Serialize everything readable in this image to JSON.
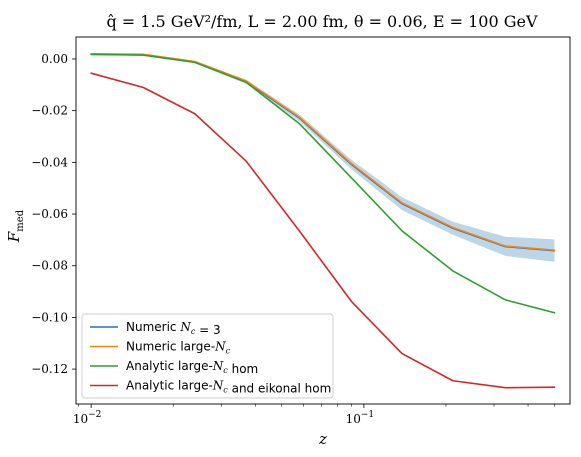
{
  "chart_data": {
    "type": "line",
    "title": "q̂ = 1.5 GeV²/fm,  L = 2.00 fm,  θ = 0.06,  E = 100 GeV",
    "xlabel": "z",
    "ylabel": "F_med",
    "xscale": "log",
    "xlim": [
      0.0088,
      0.57
    ],
    "ylim": [
      -0.1335,
      0.0085
    ],
    "x_ticks": [
      {
        "value": 0.01,
        "base": "10",
        "exp": "−2"
      },
      {
        "value": 0.1,
        "base": "10",
        "exp": "−1"
      }
    ],
    "y_ticks": [
      {
        "value": 0.0,
        "label": "0.00"
      },
      {
        "value": -0.02,
        "label": "−0.02"
      },
      {
        "value": -0.04,
        "label": "−0.04"
      },
      {
        "value": -0.06,
        "label": "−0.06"
      },
      {
        "value": -0.08,
        "label": "−0.08"
      },
      {
        "value": -0.1,
        "label": "−0.10"
      },
      {
        "value": -0.12,
        "label": "−0.12"
      }
    ],
    "x": [
      0.01,
      0.0155,
      0.024,
      0.037,
      0.058,
      0.09,
      0.138,
      0.212,
      0.33,
      0.5
    ],
    "series": [
      {
        "name": "Numeric N_c = 3",
        "color": "#1f77b4",
        "values": [
          0.0018,
          0.0016,
          -0.0012,
          -0.0088,
          -0.0228,
          -0.0408,
          -0.056,
          -0.0655,
          -0.0726,
          -0.0742
        ]
      },
      {
        "name": "Numeric large-N_c",
        "color": "#ff7f0e",
        "values": [
          0.002,
          0.0018,
          -0.001,
          -0.0085,
          -0.0225,
          -0.0405,
          -0.0557,
          -0.0652,
          -0.0724,
          -0.074
        ]
      },
      {
        "name": "Analytic large-N_c hom",
        "color": "#2ca02c",
        "values": [
          0.0018,
          0.0015,
          -0.0013,
          -0.009,
          -0.025,
          -0.046,
          -0.0665,
          -0.082,
          -0.0932,
          -0.0982
        ]
      },
      {
        "name": "Analytic large-N_c and eikonal hom",
        "color": "#d62728",
        "values": [
          -0.0055,
          -0.011,
          -0.0212,
          -0.0395,
          -0.0665,
          -0.0938,
          -0.114,
          -0.1245,
          -0.1272,
          -0.127
        ]
      }
    ],
    "band": {
      "color": "#1f77b4",
      "upper": [
        0.0022,
        0.002,
        -0.0008,
        -0.008,
        -0.0215,
        -0.039,
        -0.0535,
        -0.063,
        -0.0688,
        -0.0698
      ],
      "lower": [
        0.0014,
        0.0012,
        -0.0016,
        -0.0096,
        -0.0241,
        -0.0426,
        -0.0585,
        -0.068,
        -0.0762,
        -0.0785
      ]
    },
    "legend": {
      "placement": "lower-left"
    },
    "grid": false
  }
}
